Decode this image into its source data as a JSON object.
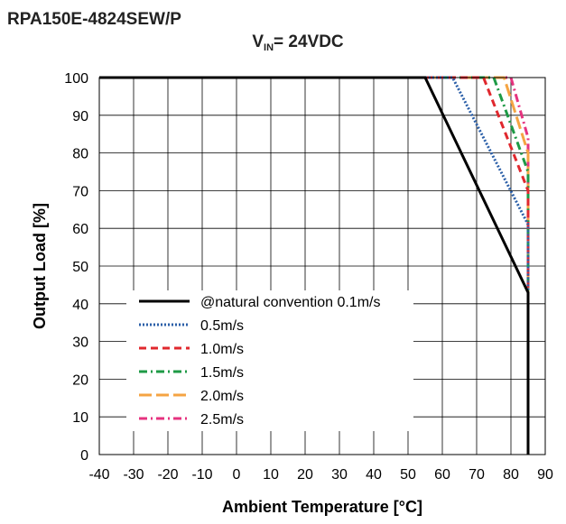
{
  "chart_data": {
    "type": "line",
    "title": "RPA150E-4824SEW/P",
    "subtitle_main": "V",
    "subtitle_sub": "IN",
    "subtitle_rest": "= 24VDC",
    "xlabel": "Ambient Temperature [°C]",
    "ylabel": "Output Load [%]",
    "xlim": [
      -40,
      90
    ],
    "ylim": [
      0,
      100
    ],
    "xticks": [
      -40,
      -30,
      -20,
      -10,
      0,
      10,
      20,
      30,
      40,
      50,
      60,
      70,
      80,
      90
    ],
    "yticks": [
      0,
      10,
      20,
      30,
      40,
      50,
      60,
      70,
      80,
      90,
      100
    ],
    "grid": true,
    "legend_position": "lower-left",
    "series": [
      {
        "name": "@natural convention 0.1m/s",
        "color": "#000000",
        "dash": "solid",
        "x": [
          -40,
          55,
          85,
          85
        ],
        "y": [
          100,
          100,
          43,
          0
        ]
      },
      {
        "name": "0.5m/s",
        "color": "#2b5fa8",
        "dash": "dotted",
        "x": [
          55,
          63,
          85,
          85
        ],
        "y": [
          100,
          100,
          61,
          43
        ]
      },
      {
        "name": "1.0m/s",
        "color": "#e0282e",
        "dash": "dashed",
        "x": [
          55,
          72,
          85,
          85
        ],
        "y": [
          100,
          100,
          70,
          43
        ]
      },
      {
        "name": "1.5m/s",
        "color": "#1e9a46",
        "dash": "dashdot",
        "x": [
          55,
          75,
          85,
          85
        ],
        "y": [
          100,
          100,
          75,
          43
        ]
      },
      {
        "name": "2.0m/s",
        "color": "#f5a443",
        "dash": "longdash",
        "x": [
          55,
          78,
          85,
          85
        ],
        "y": [
          100,
          100,
          80,
          43
        ]
      },
      {
        "name": "2.5m/s",
        "color": "#e6337f",
        "dash": "dashdot",
        "x": [
          55,
          80,
          85,
          85
        ],
        "y": [
          100,
          100,
          84,
          43
        ]
      }
    ]
  }
}
